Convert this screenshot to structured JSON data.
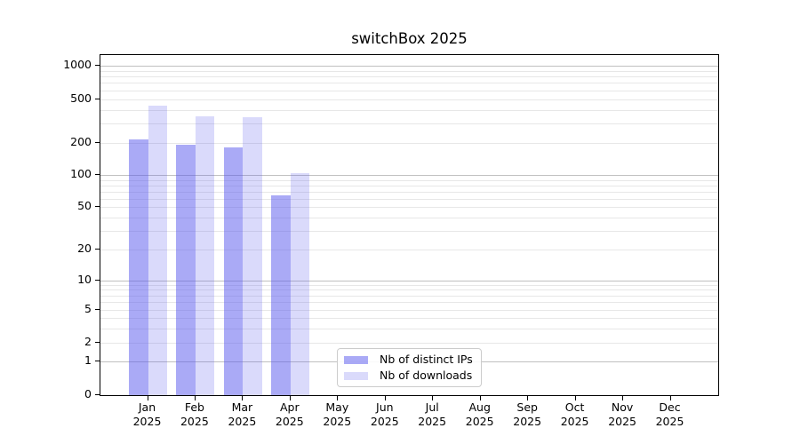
{
  "colors": {
    "bar_base": "#5555ee",
    "ip_fill": "rgba(85,85,238,0.50)",
    "dl_fill": "rgba(85,85,238,0.22)",
    "major_grid": "#c0c0c0",
    "minor_grid": "#e7e7e7",
    "axis": "#000000",
    "legend_border": "#cccccc"
  },
  "chart_data": {
    "type": "bar",
    "title": "switchBox 2025",
    "categories": [
      "Jan",
      "Feb",
      "Mar",
      "Apr",
      "May",
      "Jun",
      "Jul",
      "Aug",
      "Sep",
      "Oct",
      "Nov",
      "Dec"
    ],
    "category_year": "2025",
    "series": [
      {
        "name": "Nb of distinct IPs",
        "values": [
          215,
          190,
          180,
          65,
          0,
          0,
          0,
          0,
          0,
          0,
          0,
          0
        ]
      },
      {
        "name": "Nb of downloads",
        "values": [
          440,
          350,
          345,
          104,
          0,
          0,
          0,
          0,
          0,
          0,
          0,
          0
        ]
      }
    ],
    "yscale": "symlog",
    "yticks": [
      0,
      1,
      2,
      5,
      10,
      20,
      50,
      100,
      200,
      500,
      1000
    ],
    "ylim": [
      0,
      1250
    ],
    "grid": "horizontal major+minor",
    "legend_position": "lower center-left inside plot",
    "legend": [
      "Nb of distinct IPs",
      "Nb of downloads"
    ]
  }
}
